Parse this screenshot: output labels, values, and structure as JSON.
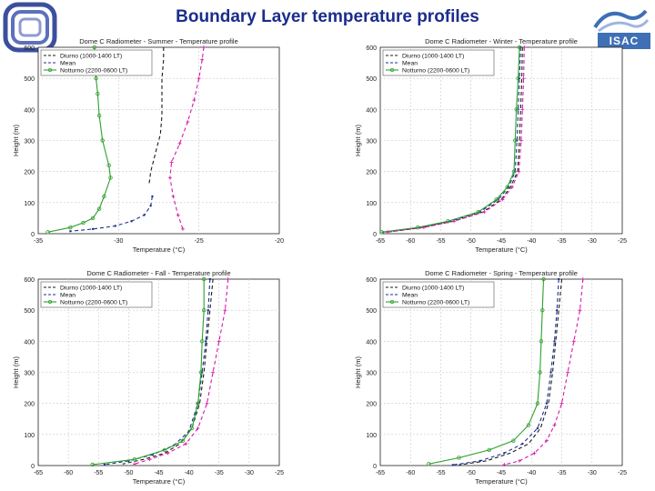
{
  "slide": {
    "title": "Boundary Layer temperature profiles",
    "logo_right_text": "ISAC"
  },
  "colors": {
    "title": "#1b2d8c",
    "diurno": "#1a1a1a",
    "mean": "#1c2f8f",
    "notturno": "#2ca02c",
    "fourth": "#d61aa8",
    "logo_blue": "#3f6fb5"
  },
  "chart_data": [
    {
      "type": "line",
      "title": "Dome C Radiometer - Summer - Temperature profile",
      "xlabel": "Temperature (°C)",
      "ylabel": "Height (m)",
      "xlim": [
        -35,
        -20
      ],
      "x_reversed": true,
      "x_ticks": [
        "-35",
        "-30",
        "-25",
        "-20"
      ],
      "ylim": [
        0,
        600
      ],
      "y_ticks": [
        "0",
        "100",
        "200",
        "300",
        "400",
        "500",
        "600"
      ],
      "grid": true,
      "legend_position": "top-left",
      "series": [
        {
          "name": "Diurno (1000-1400 LT)",
          "style": "dashed",
          "color": "#1a1a1a",
          "marker": "none",
          "points": [
            [
              -27.2,
              600
            ],
            [
              -27.2,
              560
            ],
            [
              -27.3,
              500
            ],
            [
              -27.3,
              450
            ],
            [
              -27.3,
              380
            ],
            [
              -27.4,
              320
            ],
            [
              -27.6,
              280
            ],
            [
              -27.8,
              240
            ],
            [
              -28.0,
              200
            ],
            [
              -28.1,
              160
            ]
          ]
        },
        {
          "name": "Mean",
          "style": "dashed",
          "color": "#1c2f8f",
          "marker": "dot",
          "points": [
            [
              -27.9,
              120
            ],
            [
              -28.0,
              90
            ],
            [
              -28.4,
              60
            ],
            [
              -29.2,
              40
            ],
            [
              -30.2,
              25
            ],
            [
              -31.6,
              15
            ],
            [
              -33.0,
              8
            ]
          ]
        },
        {
          "name": "Notturno (2200-0600 LT)",
          "style": "solid",
          "color": "#2ca02c",
          "marker": "circle",
          "points": [
            [
              -31.5,
              600
            ],
            [
              -31.5,
              560
            ],
            [
              -31.4,
              500
            ],
            [
              -31.3,
              450
            ],
            [
              -31.2,
              380
            ],
            [
              -31.0,
              300
            ],
            [
              -30.6,
              220
            ],
            [
              -30.5,
              180
            ],
            [
              -30.9,
              120
            ],
            [
              -31.2,
              80
            ],
            [
              -31.6,
              50
            ],
            [
              -32.2,
              35
            ],
            [
              -33.0,
              20
            ],
            [
              -34.4,
              5
            ]
          ]
        },
        {
          "name": "",
          "style": "dashed",
          "color": "#d61aa8",
          "marker": "plus",
          "points": [
            [
              -24.7,
              600
            ],
            [
              -24.8,
              560
            ],
            [
              -25.0,
              500
            ],
            [
              -25.3,
              430
            ],
            [
              -25.7,
              360
            ],
            [
              -26.2,
              290
            ],
            [
              -26.7,
              230
            ],
            [
              -26.8,
              180
            ],
            [
              -26.6,
              120
            ],
            [
              -26.3,
              60
            ],
            [
              -26.0,
              15
            ]
          ]
        }
      ]
    },
    {
      "type": "line",
      "title": "Dome C Radiometer - Winter - Temperature profile",
      "xlabel": "Temperature (°C)",
      "ylabel": "Height (m)",
      "xlim": [
        -65,
        -25
      ],
      "x_reversed": true,
      "x_ticks": [
        "-65",
        "-60",
        "-55",
        "-50",
        "-45",
        "-40",
        "-35",
        "-30",
        "-25"
      ],
      "ylim": [
        0,
        600
      ],
      "y_ticks": [
        "0",
        "100",
        "200",
        "300",
        "400",
        "500",
        "600"
      ],
      "grid": true,
      "legend_position": "top-left",
      "series": [
        {
          "name": "Diurno (1000-1400 LT)",
          "style": "dashed",
          "color": "#1a1a1a",
          "marker": "none",
          "points": [
            [
              -41.5,
              600
            ],
            [
              -41.6,
              500
            ],
            [
              -41.8,
              400
            ],
            [
              -42.0,
              300
            ],
            [
              -42.3,
              200
            ],
            [
              -43.5,
              150
            ],
            [
              -45.0,
              110
            ],
            [
              -48.0,
              70
            ],
            [
              -53.0,
              40
            ],
            [
              -58.0,
              20
            ],
            [
              -64.0,
              5
            ]
          ]
        },
        {
          "name": "Mean",
          "style": "dashed",
          "color": "#1c2f8f",
          "marker": "dot",
          "points": [
            [
              -41.8,
              600
            ],
            [
              -42.0,
              500
            ],
            [
              -42.2,
              400
            ],
            [
              -42.4,
              300
            ],
            [
              -42.7,
              200
            ],
            [
              -43.8,
              150
            ],
            [
              -45.5,
              110
            ],
            [
              -48.5,
              70
            ],
            [
              -53.5,
              40
            ],
            [
              -58.5,
              20
            ],
            [
              -64.5,
              5
            ]
          ]
        },
        {
          "name": "Notturno (2200-0600 LT)",
          "style": "solid",
          "color": "#2ca02c",
          "marker": "circle",
          "points": [
            [
              -42.0,
              600
            ],
            [
              -42.2,
              500
            ],
            [
              -42.5,
              400
            ],
            [
              -42.7,
              300
            ],
            [
              -42.9,
              200
            ],
            [
              -44.0,
              150
            ],
            [
              -45.8,
              110
            ],
            [
              -48.8,
              70
            ],
            [
              -53.8,
              40
            ],
            [
              -58.8,
              20
            ],
            [
              -64.8,
              5
            ]
          ]
        },
        {
          "name": "",
          "style": "dashed",
          "color": "#d61aa8",
          "marker": "plus",
          "points": [
            [
              -41.2,
              600
            ],
            [
              -41.3,
              500
            ],
            [
              -41.5,
              400
            ],
            [
              -41.7,
              300
            ],
            [
              -42.1,
              200
            ],
            [
              -43.2,
              150
            ],
            [
              -44.8,
              110
            ],
            [
              -47.8,
              70
            ],
            [
              -52.8,
              40
            ],
            [
              -57.8,
              20
            ],
            [
              -63.8,
              5
            ]
          ]
        }
      ]
    },
    {
      "type": "line",
      "title": "Dome C Radiometer - Fall - Temperature profile",
      "xlabel": "Temperature (°C)",
      "ylabel": "Height (m)",
      "xlim": [
        -65,
        -25
      ],
      "x_reversed": true,
      "x_ticks": [
        "-65",
        "-60",
        "-55",
        "-50",
        "-45",
        "-40",
        "-35",
        "-30",
        "-25"
      ],
      "ylim": [
        0,
        600
      ],
      "y_ticks": [
        "0",
        "100",
        "200",
        "300",
        "400",
        "500",
        "600"
      ],
      "grid": true,
      "legend_position": "top-left",
      "series": [
        {
          "name": "Diurno (1000-1400 LT)",
          "style": "dashed",
          "color": "#1a1a1a",
          "marker": "none",
          "points": [
            [
              -36.0,
              600
            ],
            [
              -36.5,
              500
            ],
            [
              -37.0,
              400
            ],
            [
              -37.5,
              300
            ],
            [
              -38.2,
              200
            ],
            [
              -39.5,
              120
            ],
            [
              -41.5,
              70
            ],
            [
              -44.0,
              40
            ],
            [
              -47.5,
              20
            ],
            [
              -51.0,
              5
            ]
          ]
        },
        {
          "name": "Mean",
          "style": "dashed",
          "color": "#1c2f8f",
          "marker": "dot",
          "points": [
            [
              -36.5,
              600
            ],
            [
              -36.8,
              500
            ],
            [
              -37.2,
              400
            ],
            [
              -37.8,
              300
            ],
            [
              -38.5,
              200
            ],
            [
              -40.0,
              110
            ],
            [
              -42.5,
              65
            ],
            [
              -46.0,
              35
            ],
            [
              -50.0,
              15
            ],
            [
              -54.0,
              3
            ]
          ]
        },
        {
          "name": "Notturno (2200-0600 LT)",
          "style": "solid",
          "color": "#2ca02c",
          "marker": "circle",
          "points": [
            [
              -37.5,
              600
            ],
            [
              -37.5,
              500
            ],
            [
              -37.8,
              400
            ],
            [
              -38.0,
              300
            ],
            [
              -38.5,
              200
            ],
            [
              -39.5,
              120
            ],
            [
              -41.0,
              80
            ],
            [
              -44.0,
              50
            ],
            [
              -49.0,
              20
            ],
            [
              -56.0,
              3
            ]
          ]
        },
        {
          "name": "",
          "style": "dashed",
          "color": "#d61aa8",
          "marker": "plus",
          "points": [
            [
              -33.5,
              600
            ],
            [
              -34.0,
              500
            ],
            [
              -35.0,
              400
            ],
            [
              -36.0,
              300
            ],
            [
              -37.0,
              200
            ],
            [
              -38.5,
              120
            ],
            [
              -40.5,
              70
            ],
            [
              -43.5,
              40
            ],
            [
              -46.5,
              20
            ],
            [
              -49.0,
              5
            ]
          ]
        }
      ]
    },
    {
      "type": "line",
      "title": "Dome C Radiometer - Spring - Temperature profile",
      "xlabel": "Temperature (°C)",
      "ylabel": "Height (m)",
      "xlim": [
        -65,
        -25
      ],
      "x_reversed": true,
      "x_ticks": [
        "-65",
        "-60",
        "-55",
        "-50",
        "-45",
        "-40",
        "-35",
        "-30",
        "-25"
      ],
      "ylim": [
        0,
        600
      ],
      "y_ticks": [
        "0",
        "100",
        "200",
        "300",
        "400",
        "500",
        "600"
      ],
      "grid": true,
      "legend_position": "top-left",
      "series": [
        {
          "name": "Diurno (1000-1400 LT)",
          "style": "dashed",
          "color": "#1a1a1a",
          "marker": "none",
          "points": [
            [
              -35.0,
              600
            ],
            [
              -35.5,
              500
            ],
            [
              -36.0,
              400
            ],
            [
              -36.5,
              300
            ],
            [
              -37.2,
              200
            ],
            [
              -38.5,
              120
            ],
            [
              -40.5,
              70
            ],
            [
              -43.5,
              40
            ],
            [
              -47.5,
              15
            ],
            [
              -52.0,
              2
            ]
          ]
        },
        {
          "name": "Mean",
          "style": "dashed",
          "color": "#1c2f8f",
          "marker": "dot",
          "points": [
            [
              -35.5,
              600
            ],
            [
              -35.8,
              500
            ],
            [
              -36.2,
              400
            ],
            [
              -36.8,
              300
            ],
            [
              -37.5,
              200
            ],
            [
              -39.0,
              120
            ],
            [
              -41.5,
              70
            ],
            [
              -44.5,
              40
            ],
            [
              -48.5,
              15
            ],
            [
              -53.0,
              2
            ]
          ]
        },
        {
          "name": "Notturno (2200-0600 LT)",
          "style": "solid",
          "color": "#2ca02c",
          "marker": "circle",
          "points": [
            [
              -38.0,
              600
            ],
            [
              -38.2,
              500
            ],
            [
              -38.4,
              400
            ],
            [
              -38.6,
              300
            ],
            [
              -39.0,
              200
            ],
            [
              -40.5,
              130
            ],
            [
              -43.0,
              80
            ],
            [
              -47.0,
              50
            ],
            [
              -52.0,
              25
            ],
            [
              -57.0,
              5
            ]
          ]
        },
        {
          "name": "",
          "style": "dashed",
          "color": "#d61aa8",
          "marker": "plus",
          "points": [
            [
              -31.5,
              600
            ],
            [
              -32.0,
              500
            ],
            [
              -33.0,
              400
            ],
            [
              -34.0,
              300
            ],
            [
              -35.0,
              200
            ],
            [
              -36.2,
              130
            ],
            [
              -37.5,
              80
            ],
            [
              -39.5,
              40
            ],
            [
              -42.0,
              15
            ],
            [
              -44.5,
              3
            ]
          ]
        }
      ]
    }
  ]
}
